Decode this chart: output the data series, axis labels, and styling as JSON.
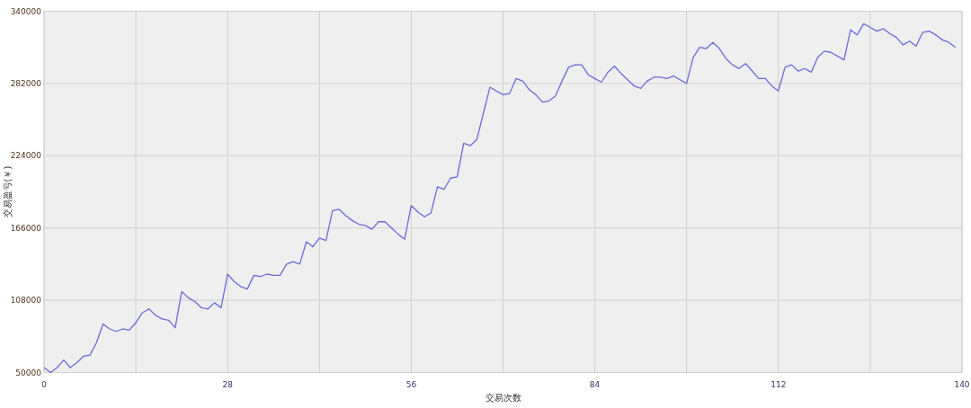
{
  "chart_data": {
    "type": "line",
    "xlabel": "交易次数",
    "ylabel": "交易盈亏(￥)",
    "x": [
      0,
      1,
      2,
      3,
      4,
      5,
      6,
      7,
      8,
      9,
      10,
      11,
      12,
      13,
      14,
      15,
      16,
      17,
      18,
      19,
      20,
      21,
      22,
      23,
      24,
      25,
      26,
      27,
      28,
      29,
      30,
      31,
      32,
      33,
      34,
      35,
      36,
      37,
      38,
      39,
      40,
      41,
      42,
      43,
      44,
      45,
      46,
      47,
      48,
      49,
      50,
      51,
      52,
      53,
      54,
      55,
      56,
      57,
      58,
      59,
      60,
      61,
      62,
      63,
      64,
      65,
      66,
      67,
      68,
      69,
      70,
      71,
      72,
      73,
      74,
      75,
      76,
      77,
      78,
      79,
      80,
      81,
      82,
      83,
      84,
      85,
      86,
      87,
      88,
      89,
      90,
      91,
      92,
      93,
      94,
      95,
      96,
      97,
      98,
      99,
      100,
      101,
      102,
      103,
      104,
      105,
      106,
      107,
      108,
      109,
      110,
      111,
      112,
      113,
      114,
      115,
      116,
      117,
      118,
      119,
      120,
      121,
      122,
      123,
      124,
      125,
      126,
      127,
      128,
      129,
      130,
      131,
      132,
      133,
      134,
      135,
      136,
      137,
      138,
      139
    ],
    "series": [
      {
        "color": "#6a6ad8",
        "values": [
          54000,
          50000,
          54000,
          60000,
          54000,
          58000,
          63000,
          64000,
          74000,
          89000,
          85000,
          83000,
          85000,
          84000,
          90000,
          98000,
          101000,
          96000,
          93000,
          92000,
          86000,
          115000,
          110000,
          107000,
          102000,
          101000,
          106000,
          102000,
          129000,
          123000,
          119000,
          117000,
          128000,
          127000,
          129000,
          128000,
          128000,
          137000,
          139000,
          137000,
          155000,
          151000,
          158000,
          156000,
          180000,
          181000,
          176000,
          172000,
          169000,
          168000,
          165000,
          171000,
          171000,
          166000,
          161000,
          157000,
          184000,
          179000,
          175000,
          178000,
          199000,
          197000,
          206000,
          207000,
          234000,
          232000,
          237000,
          258000,
          279000,
          276000,
          273000,
          274000,
          286000,
          284000,
          277000,
          273000,
          267000,
          268000,
          272000,
          284000,
          295000,
          297000,
          297000,
          289000,
          286000,
          283000,
          291000,
          296000,
          290000,
          285000,
          280000,
          278000,
          284000,
          287000,
          287000,
          286000,
          288000,
          285000,
          282000,
          303000,
          311000,
          310000,
          315000,
          310000,
          302000,
          297000,
          294000,
          298000,
          292000,
          286000,
          286000,
          280000,
          276000,
          295000,
          297000,
          292000,
          294000,
          291000,
          303000,
          308000,
          307000,
          304000,
          301000,
          325000,
          321000,
          330000,
          327000,
          324000,
          326000,
          322000,
          319000,
          313000,
          316000,
          312000,
          323000,
          324000,
          321000,
          317000,
          315000,
          311000
        ]
      }
    ],
    "xlim": [
      0,
      140
    ],
    "ylim": [
      50000,
      340000
    ],
    "xticks": [
      0,
      {
        "value": 14,
        "label": null
      },
      28,
      {
        "value": 42,
        "label": null
      },
      56,
      {
        "value": 70,
        "label": null
      },
      84,
      {
        "value": 98,
        "label": null
      },
      112,
      {
        "value": 126,
        "label": null
      },
      140
    ],
    "yticks": [
      50000,
      108000,
      166000,
      224000,
      282000,
      340000
    ],
    "grid": true
  }
}
